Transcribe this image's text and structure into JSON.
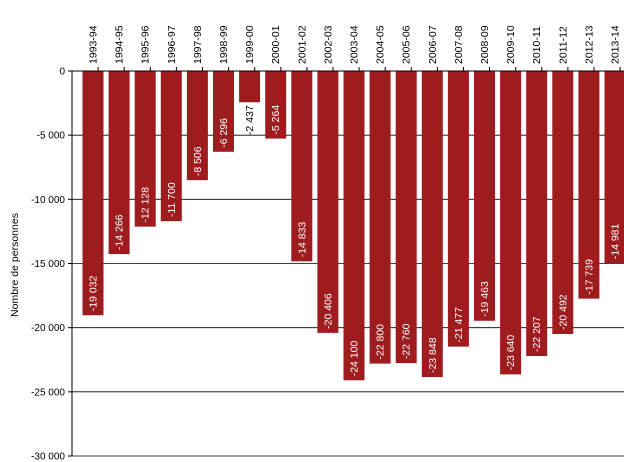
{
  "chart_data": {
    "type": "bar",
    "ylabel": "Nombre de personnes",
    "ylim": [
      -30000,
      0
    ],
    "yticks": [
      0,
      -5000,
      -10000,
      -15000,
      -20000,
      -25000,
      -30000
    ],
    "ytick_labels": [
      "0",
      "-5 000",
      "-10 000",
      "-15 000",
      "-20 000",
      "-25 000",
      "-30 000"
    ],
    "grid": true,
    "bar_color": "#9e1b1e",
    "categories": [
      "1993-94",
      "1994-95",
      "1995-96",
      "1996-97",
      "1997-98",
      "1998-99",
      "1999-00",
      "2000-01",
      "2001-02",
      "2002-03",
      "2003-04",
      "2004-05",
      "2005-06",
      "2006-07",
      "2007-08",
      "2008-09",
      "2009-10",
      "2010-11",
      "2011-12",
      "2012-13",
      "2013-14"
    ],
    "values": [
      -19032,
      -14266,
      -12128,
      -11700,
      -8506,
      -6296,
      -2437,
      -5264,
      -14833,
      -20406,
      -24100,
      -22800,
      -22760,
      -23848,
      -21477,
      -19463,
      -23640,
      -22207,
      -20492,
      -17739,
      -14981
    ],
    "data_labels": [
      "-19 032",
      "-14 266",
      "-12 128",
      "-11 700",
      "-8 506",
      "-6 296",
      "-2 437",
      "-5 264",
      "-14 833",
      "-20 406",
      "-24 100",
      "-22 800",
      "-22 760",
      "-23 848",
      "-21 477",
      "-19 463",
      "-23 640",
      "-22 207",
      "-20 492",
      "-17 739",
      "-14 981"
    ]
  }
}
